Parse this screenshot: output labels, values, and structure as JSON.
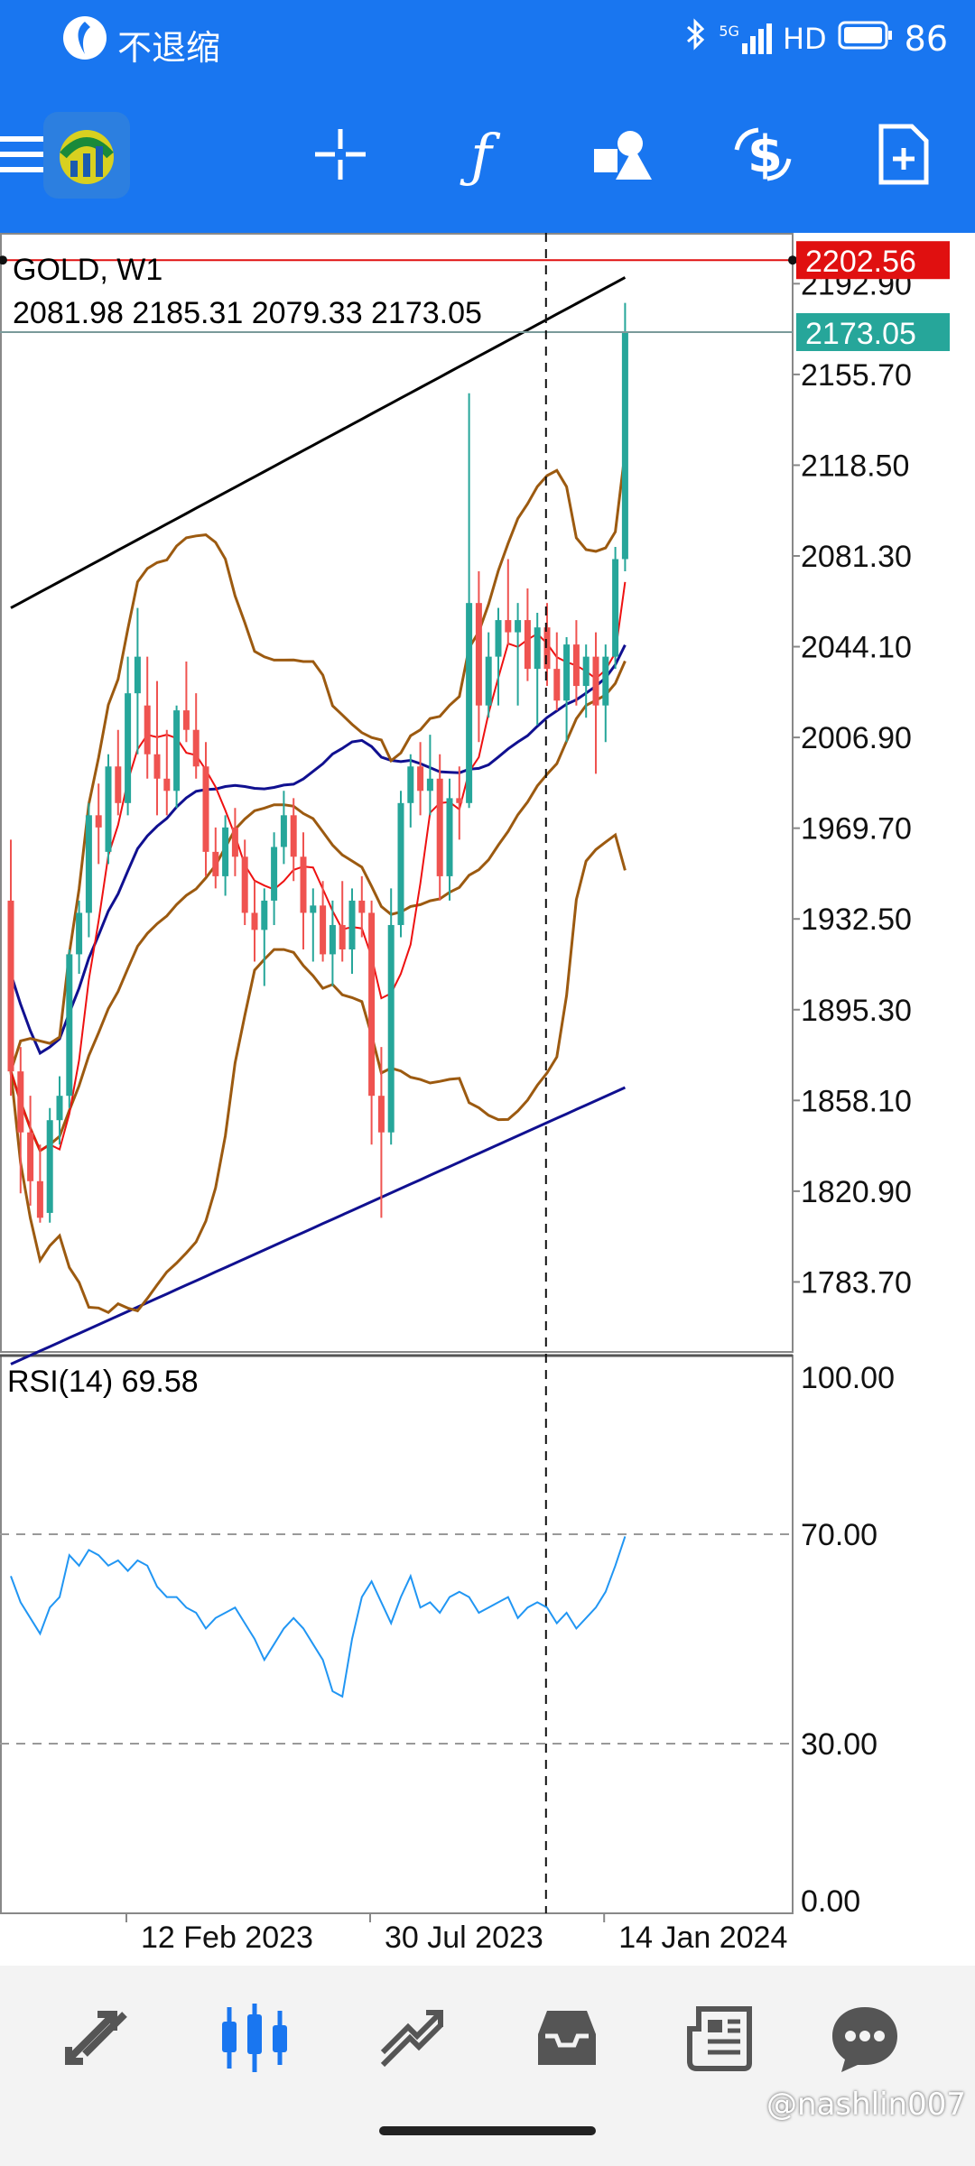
{
  "status_bar": {
    "app_label": "不退缩",
    "network": "5G",
    "hd": "HD",
    "battery": "86"
  },
  "toolbar": {
    "icons": [
      "menu-icon",
      "mt4-logo",
      "crosshair-icon",
      "indicators-icon",
      "objects-icon",
      "trade-icon",
      "new-order-icon"
    ]
  },
  "chart_data": {
    "type": "candlestick",
    "symbol": "GOLD, W1",
    "ohlc_text": "2081.98 2185.31 2079.33 2173.05",
    "price_labels": [
      "2192.90",
      "2155.70",
      "2118.50",
      "2081.30",
      "2044.10",
      "2006.90",
      "1969.70",
      "1932.50",
      "1895.30",
      "1858.10",
      "1820.90",
      "1783.70"
    ],
    "price_ticks": [
      2192.9,
      2155.7,
      2118.5,
      2081.3,
      2044.1,
      2006.9,
      1969.7,
      1932.5,
      1895.3,
      1858.1,
      1820.9,
      1783.7
    ],
    "ylim": [
      1755,
      2213
    ],
    "bid_line": {
      "label": "2202.56",
      "value": 2202.56,
      "color": "#e01010"
    },
    "current_price": {
      "label": "2173.05",
      "value": 2173.05,
      "color": "#26a69a"
    },
    "date_labels": [
      "12 Feb 2023",
      "30 Jul 2023",
      "14 Jan 2024"
    ],
    "date_label_bar_index": [
      10,
      35,
      59
    ],
    "cursor_bar_index": 51,
    "colors": {
      "bull": "#26a69a",
      "bear": "#ef5350",
      "ma_black": "#000000",
      "ma_blue": "#101090",
      "bands": "#9c5a10",
      "ma_red": "#ee1111",
      "rsi": "#2196f3"
    },
    "candles": [
      [
        1940,
        1965,
        1860,
        1870
      ],
      [
        1870,
        1880,
        1820,
        1845
      ],
      [
        1845,
        1860,
        1815,
        1825
      ],
      [
        1825,
        1840,
        1808,
        1810
      ],
      [
        1812,
        1855,
        1808,
        1850
      ],
      [
        1850,
        1868,
        1840,
        1860
      ],
      [
        1860,
        1920,
        1855,
        1918
      ],
      [
        1918,
        1940,
        1910,
        1935
      ],
      [
        1935,
        1980,
        1925,
        1975
      ],
      [
        1975,
        1988,
        1955,
        1970
      ],
      [
        1960,
        2000,
        1955,
        1995
      ],
      [
        1995,
        2010,
        1975,
        1980
      ],
      [
        1980,
        2040,
        1975,
        2025
      ],
      [
        2025,
        2060,
        2000,
        2040
      ],
      [
        2020,
        2040,
        1990,
        2000
      ],
      [
        2000,
        2030,
        1975,
        1990
      ],
      [
        1990,
        2010,
        1975,
        1985
      ],
      [
        1985,
        2020,
        1978,
        2018
      ],
      [
        2018,
        2038,
        2005,
        2010
      ],
      [
        2010,
        2025,
        1990,
        1995
      ],
      [
        1995,
        2005,
        1950,
        1960
      ],
      [
        1960,
        1970,
        1945,
        1950
      ],
      [
        1950,
        1975,
        1942,
        1970
      ],
      [
        1970,
        1978,
        1950,
        1958
      ],
      [
        1958,
        1965,
        1930,
        1935
      ],
      [
        1935,
        1948,
        1915,
        1928
      ],
      [
        1928,
        1945,
        1905,
        1940
      ],
      [
        1940,
        1968,
        1930,
        1962
      ],
      [
        1962,
        1985,
        1955,
        1975
      ],
      [
        1975,
        1982,
        1948,
        1958
      ],
      [
        1958,
        1968,
        1920,
        1935
      ],
      [
        1935,
        1945,
        1915,
        1938
      ],
      [
        1938,
        1948,
        1915,
        1918
      ],
      [
        1918,
        1940,
        1905,
        1930
      ],
      [
        1930,
        1948,
        1915,
        1920
      ],
      [
        1920,
        1945,
        1910,
        1940
      ],
      [
        1940,
        1950,
        1925,
        1935
      ],
      [
        1935,
        1940,
        1840,
        1860
      ],
      [
        1860,
        1880,
        1810,
        1845
      ],
      [
        1845,
        1945,
        1840,
        1930
      ],
      [
        1930,
        1985,
        1925,
        1980
      ],
      [
        1980,
        2000,
        1970,
        1995
      ],
      [
        1995,
        2005,
        1975,
        1985
      ],
      [
        1985,
        2008,
        1975,
        1990
      ],
      [
        1990,
        2000,
        1940,
        1950
      ],
      [
        1950,
        1990,
        1940,
        1982
      ],
      [
        1982,
        1995,
        1965,
        1980
      ],
      [
        1980,
        2148,
        1978,
        2062
      ],
      [
        2062,
        2075,
        2005,
        2020
      ],
      [
        2020,
        2050,
        2015,
        2040
      ],
      [
        2040,
        2060,
        2020,
        2055
      ],
      [
        2055,
        2080,
        2045,
        2050
      ],
      [
        2050,
        2062,
        2020,
        2055
      ],
      [
        2055,
        2068,
        2030,
        2035
      ],
      [
        2035,
        2058,
        2012,
        2052
      ],
      [
        2052,
        2062,
        2028,
        2035
      ],
      [
        2035,
        2050,
        2018,
        2022
      ],
      [
        2022,
        2048,
        2005,
        2045
      ],
      [
        2045,
        2055,
        2020,
        2028
      ],
      [
        2028,
        2045,
        2015,
        2040
      ],
      [
        2040,
        2050,
        1992,
        2020
      ],
      [
        2020,
        2045,
        2005,
        2040
      ],
      [
        2040,
        2085,
        2035,
        2080
      ],
      [
        2080,
        2185,
        2075,
        2173
      ]
    ],
    "rsi": {
      "label": "RSI(14) 69.58",
      "levels_labels": [
        "100.00",
        "70.00",
        "30.00",
        "0.00"
      ],
      "levels": [
        100,
        70,
        30,
        0
      ],
      "values": [
        62,
        57,
        54,
        51,
        56,
        58,
        66,
        64,
        67,
        66,
        64,
        65,
        63,
        65,
        64,
        60,
        58,
        58,
        56,
        55,
        52,
        54,
        55,
        56,
        53,
        50,
        46,
        49,
        52,
        54,
        52,
        49,
        46,
        40,
        39,
        50,
        58,
        61,
        57,
        53,
        58,
        62,
        56,
        57,
        55,
        58,
        59,
        58,
        55,
        56,
        57,
        58,
        54,
        56,
        57,
        56,
        53,
        55,
        52,
        54,
        56,
        59,
        64,
        69.58
      ]
    }
  },
  "bottom_nav": {
    "items": [
      "quotes-icon",
      "chart-icon",
      "trade-icon",
      "history-icon",
      "news-icon",
      "chat-icon"
    ],
    "active": 1
  },
  "watermark": "@nashlin007"
}
